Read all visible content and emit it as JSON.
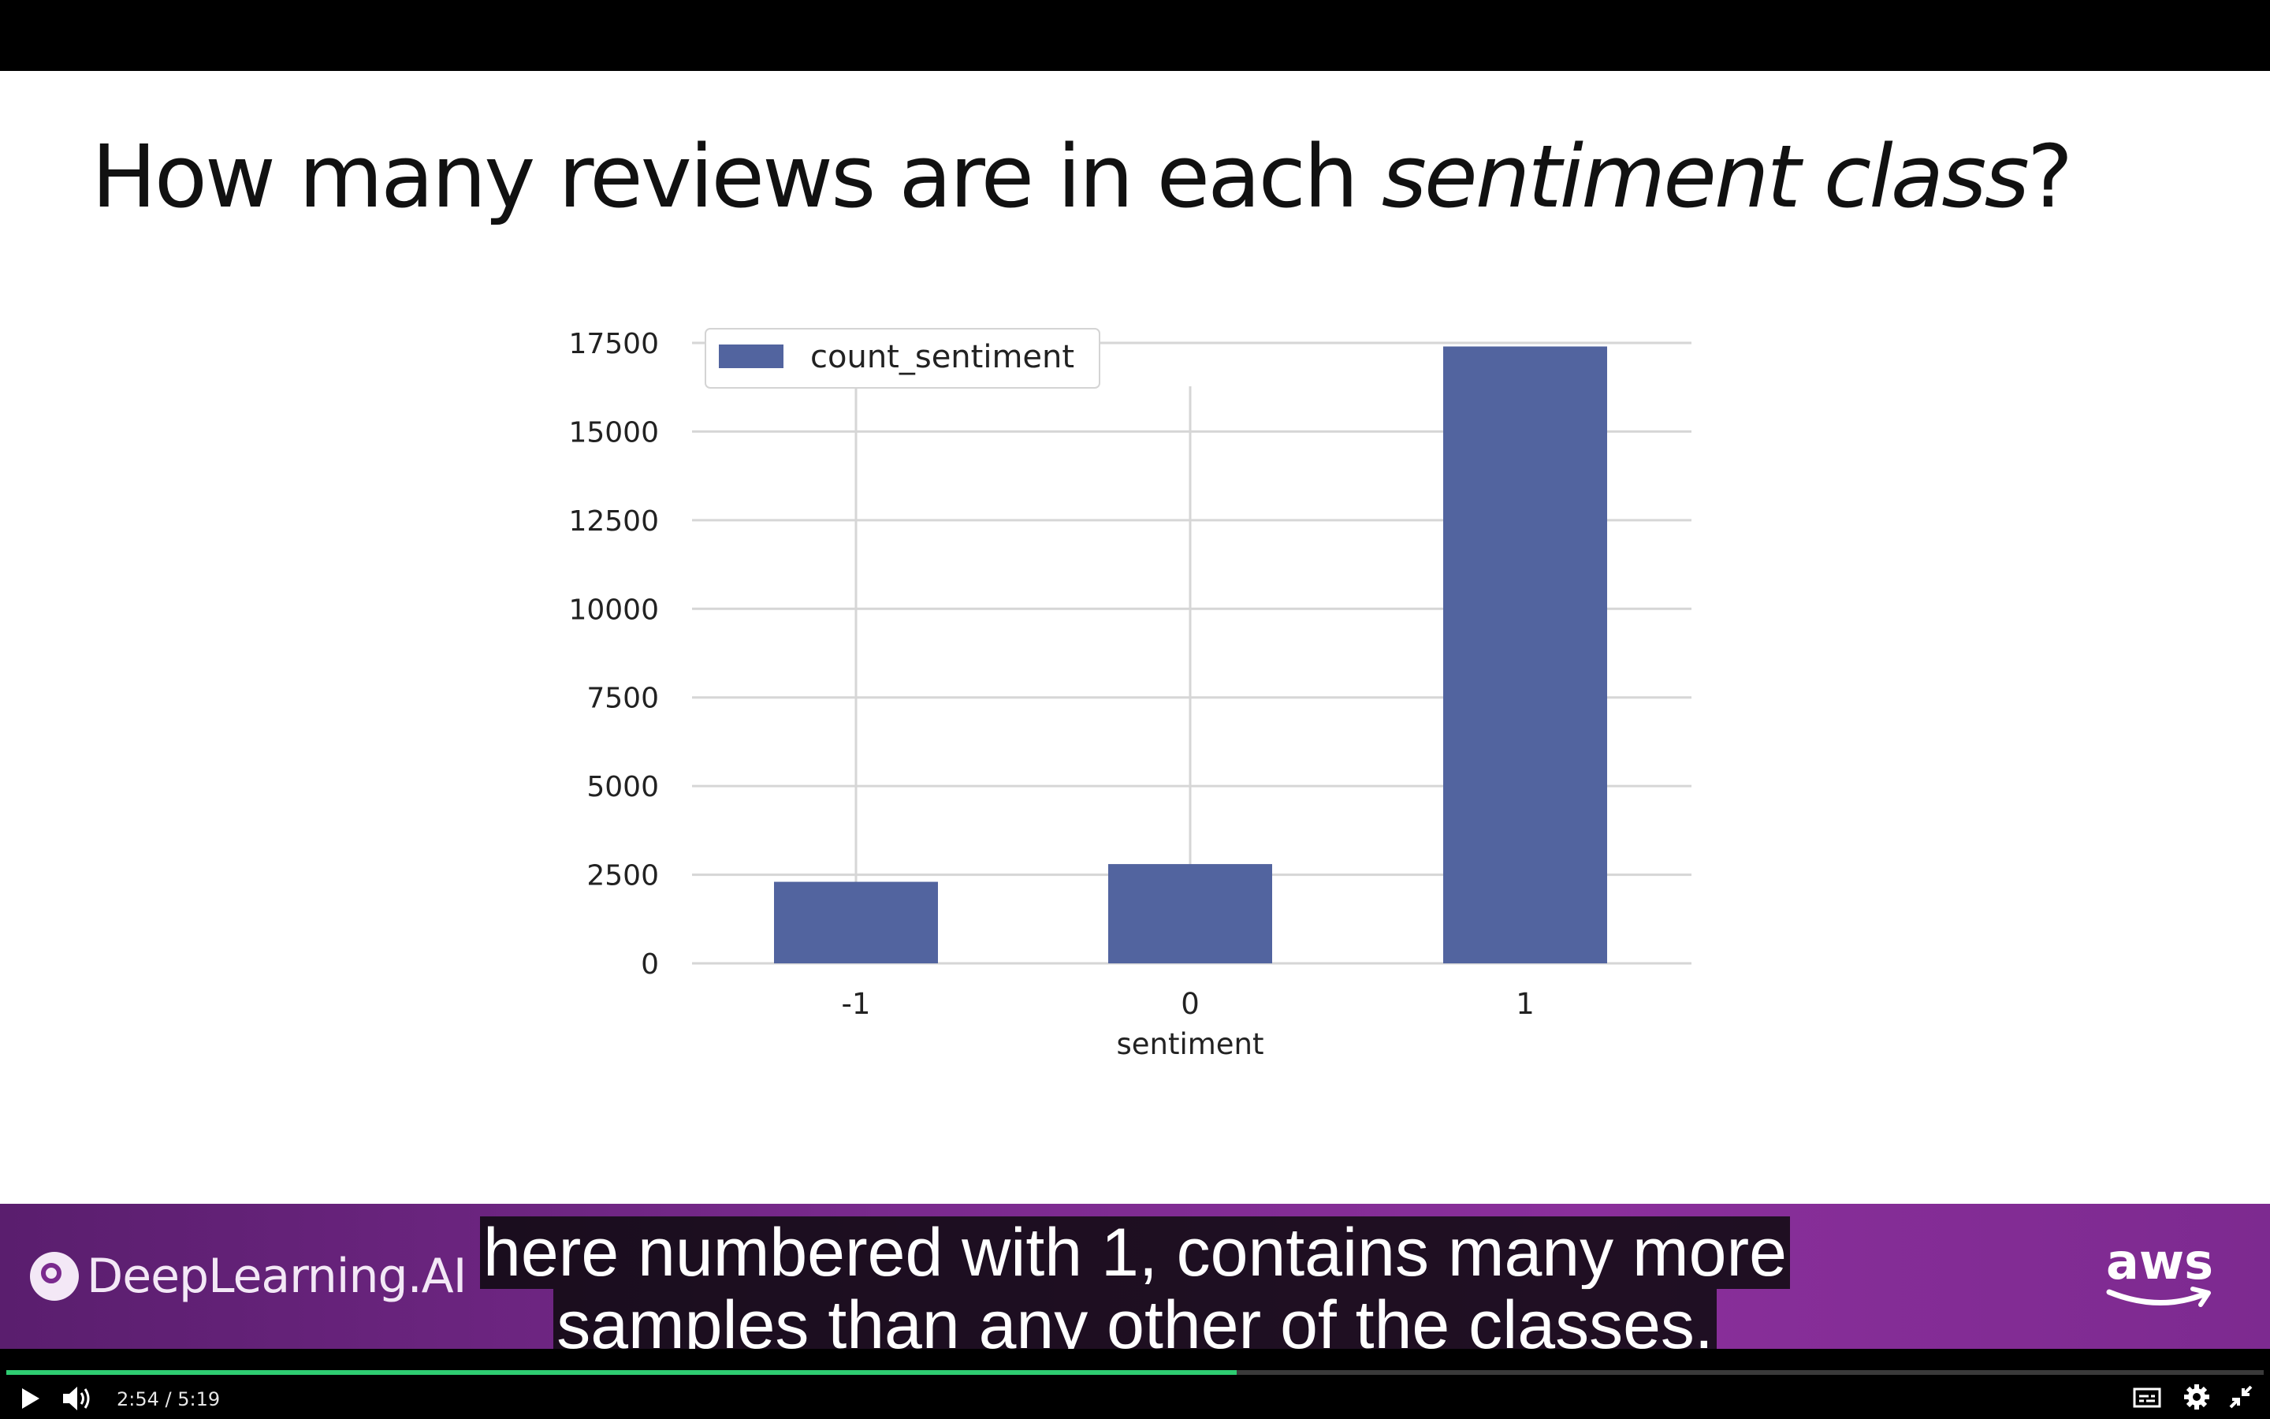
{
  "slide": {
    "title_pre": "How many reviews are in each ",
    "title_em": "sentiment class",
    "title_post": "?"
  },
  "chart_data": {
    "type": "bar",
    "categories": [
      "-1",
      "0",
      "1"
    ],
    "series": [
      {
        "name": "count_sentiment",
        "values": [
          2300,
          2800,
          17400
        ]
      }
    ],
    "xlabel": "sentiment",
    "ylabel": "",
    "ylim": [
      0,
      17500
    ],
    "yticks": [
      0,
      2500,
      5000,
      7500,
      10000,
      12500,
      15000,
      17500
    ],
    "grid": true,
    "legend": "top-left",
    "bar_color": "#52649f"
  },
  "banner": {
    "logo_text": "DeepLearning.AI",
    "aws_text": "aws",
    "caption_line1": "here numbered with 1, contains many more",
    "caption_line2": "samples than any other of the classes."
  },
  "player": {
    "current_time": "2:54",
    "separator": "/",
    "duration": "5:19",
    "progress": 0.545,
    "accent": "#2ecc71"
  },
  "icons": {
    "play": "play-icon",
    "volume": "volume-icon",
    "captions": "captions-icon",
    "settings": "gear-icon",
    "fullscreen": "exit-fullscreen-icon"
  }
}
